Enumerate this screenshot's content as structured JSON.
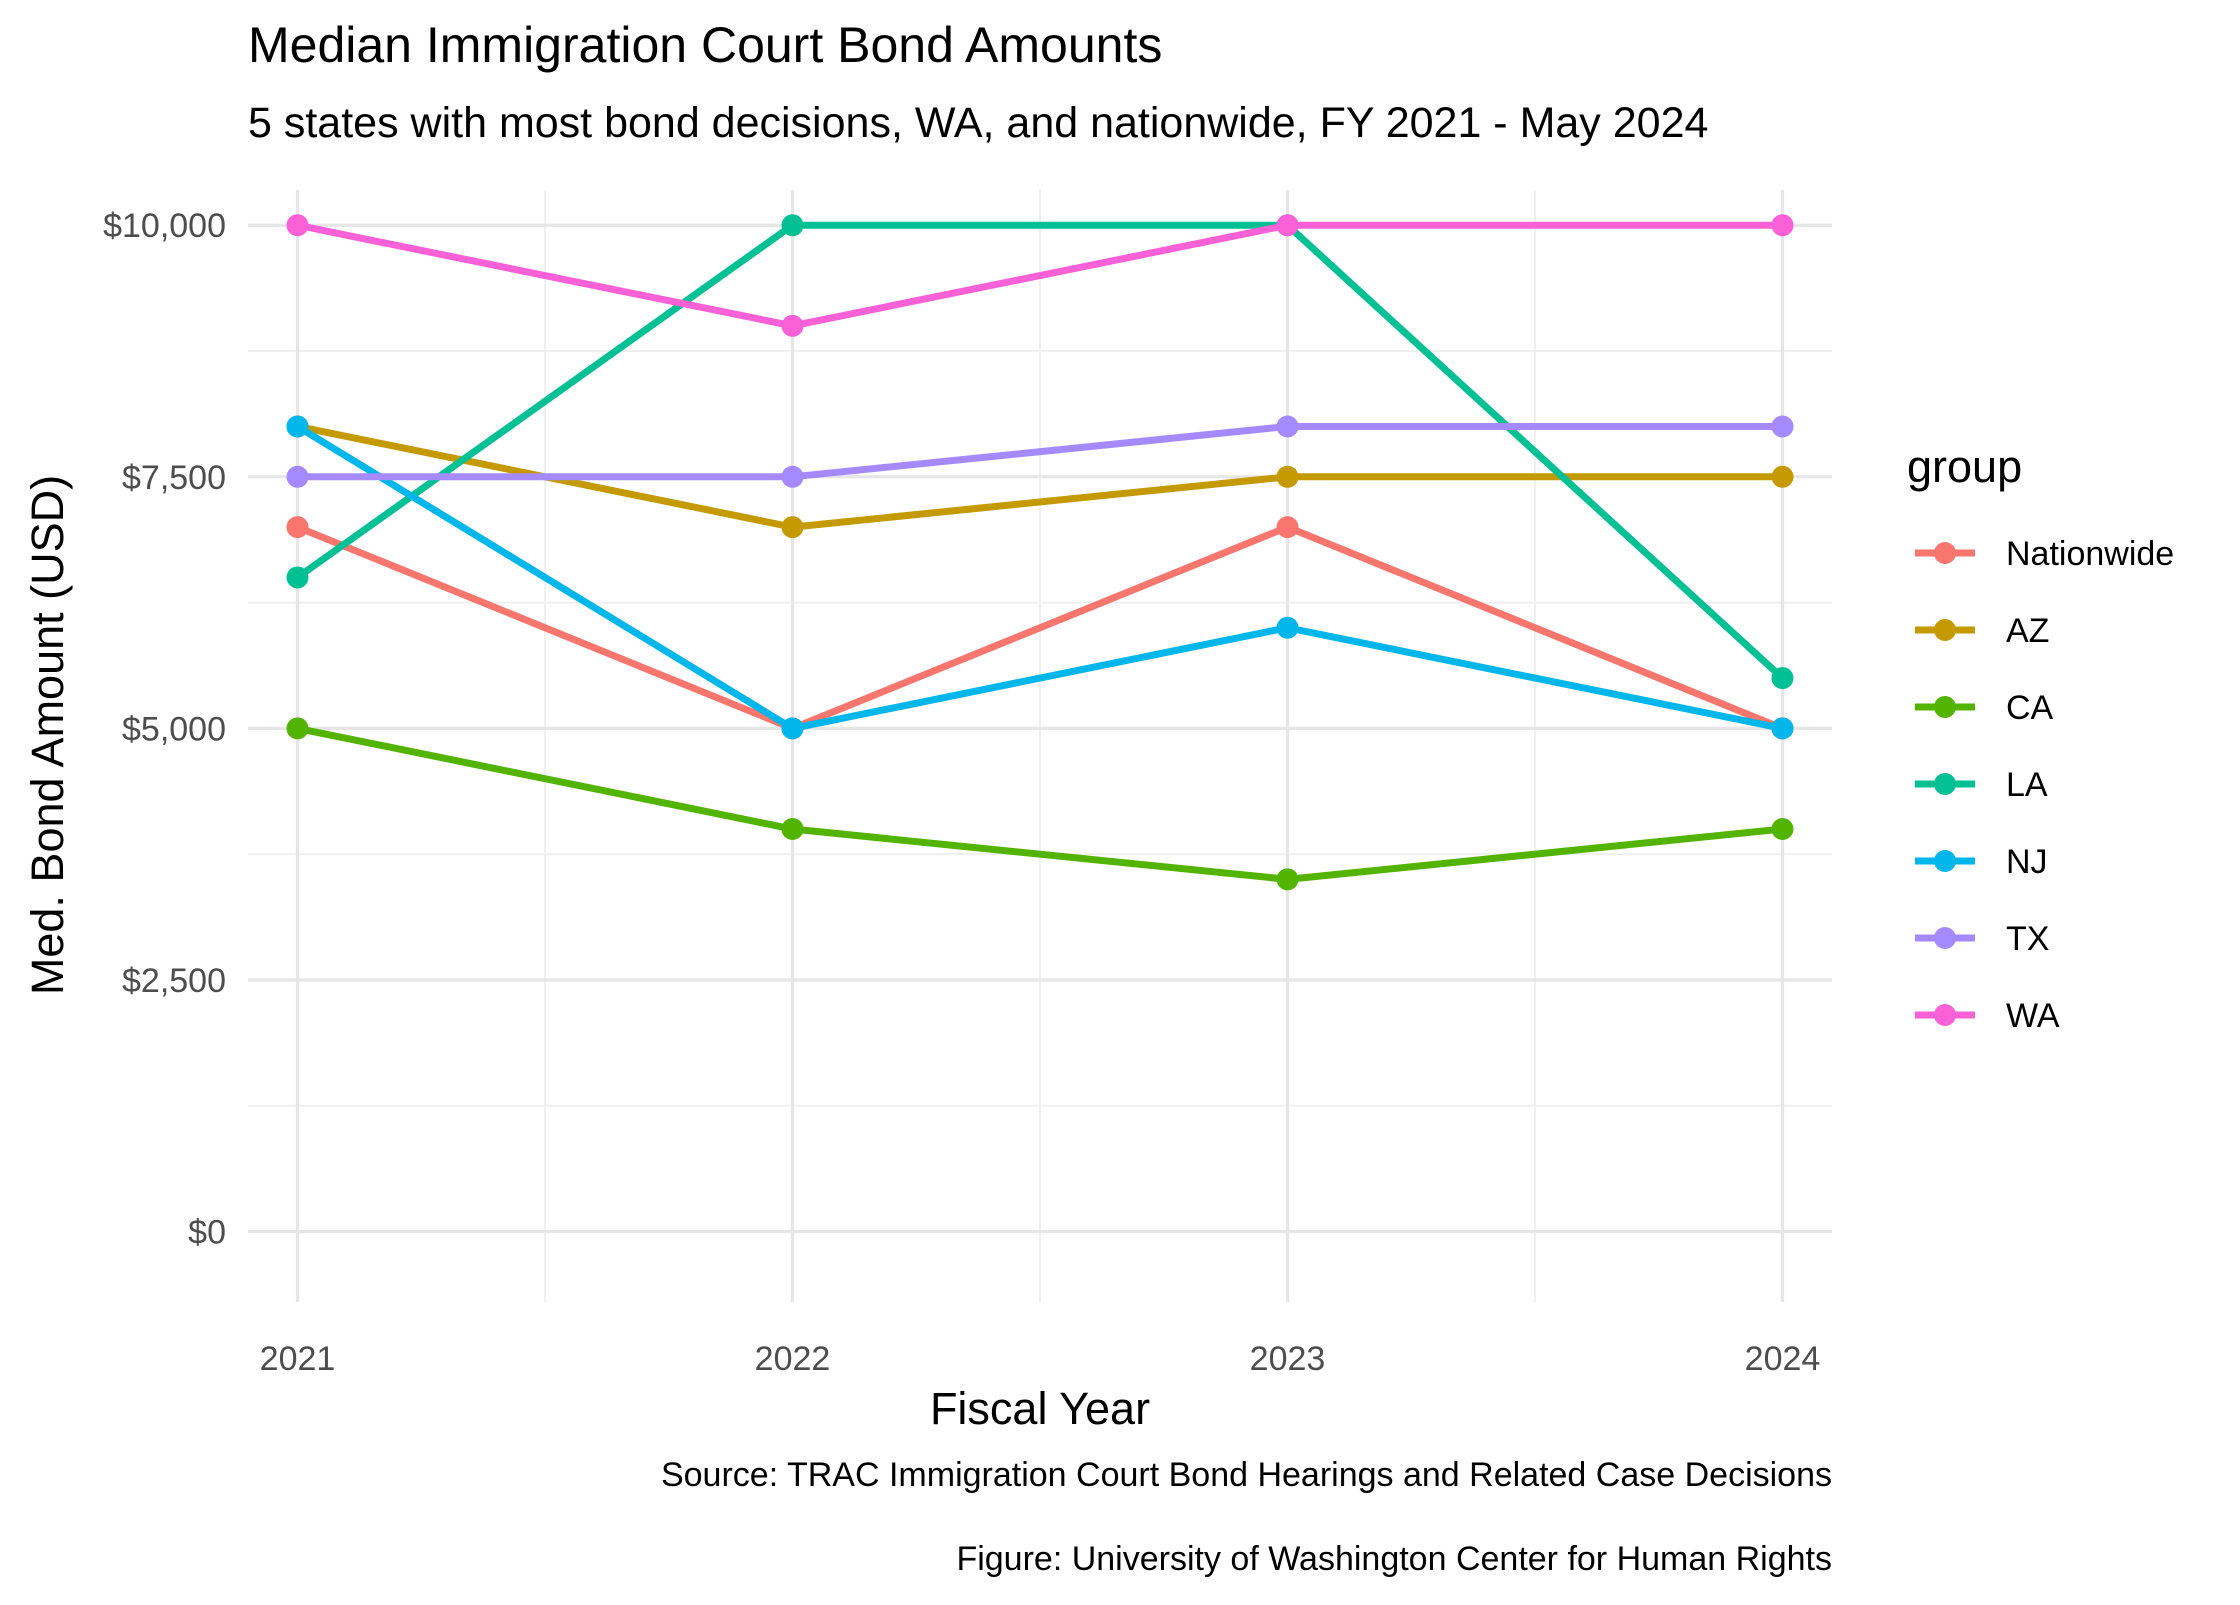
{
  "chart_data": {
    "type": "line",
    "title": "Median Immigration Court Bond Amounts",
    "subtitle": "5 states with most bond decisions, WA, and nationwide, FY 2021 - May 2024",
    "xlabel": "Fiscal Year",
    "ylabel": "Med. Bond Amount (USD)",
    "caption_lines": [
      "Source: TRAC Immigration Court Bond Hearings and Related Case Decisions",
      "Figure: University of Washington Center for Human Rights"
    ],
    "legend_title": "group",
    "legend_position": "right",
    "grid": true,
    "x": [
      2021,
      2022,
      2023,
      2024
    ],
    "x_tick_labels": [
      "2021",
      "2022",
      "2023",
      "2024"
    ],
    "xlim": [
      2020.9,
      2024.1
    ],
    "ylim": [
      -700,
      10350
    ],
    "y_ticks": [
      0,
      2500,
      5000,
      7500,
      10000
    ],
    "y_tick_labels": [
      "$0",
      "$2,500",
      "$5,000",
      "$7,500",
      "$10,000"
    ],
    "series": [
      {
        "name": "Nationwide",
        "color": "#F8766D",
        "values": [
          7000,
          5000,
          7000,
          5000
        ]
      },
      {
        "name": "AZ",
        "color": "#C49A00",
        "values": [
          8000,
          7000,
          7500,
          7500
        ]
      },
      {
        "name": "CA",
        "color": "#53B400",
        "values": [
          5000,
          4000,
          3500,
          4000
        ]
      },
      {
        "name": "LA",
        "color": "#00C094",
        "values": [
          6500,
          10000,
          10000,
          5500
        ]
      },
      {
        "name": "NJ",
        "color": "#00B6EB",
        "values": [
          8000,
          5000,
          6000,
          5000
        ]
      },
      {
        "name": "TX",
        "color": "#A58AFF",
        "values": [
          7500,
          7500,
          8000,
          8000
        ]
      },
      {
        "name": "WA",
        "color": "#FB61D7",
        "values": [
          10000,
          9000,
          10000,
          10000
        ]
      }
    ]
  }
}
